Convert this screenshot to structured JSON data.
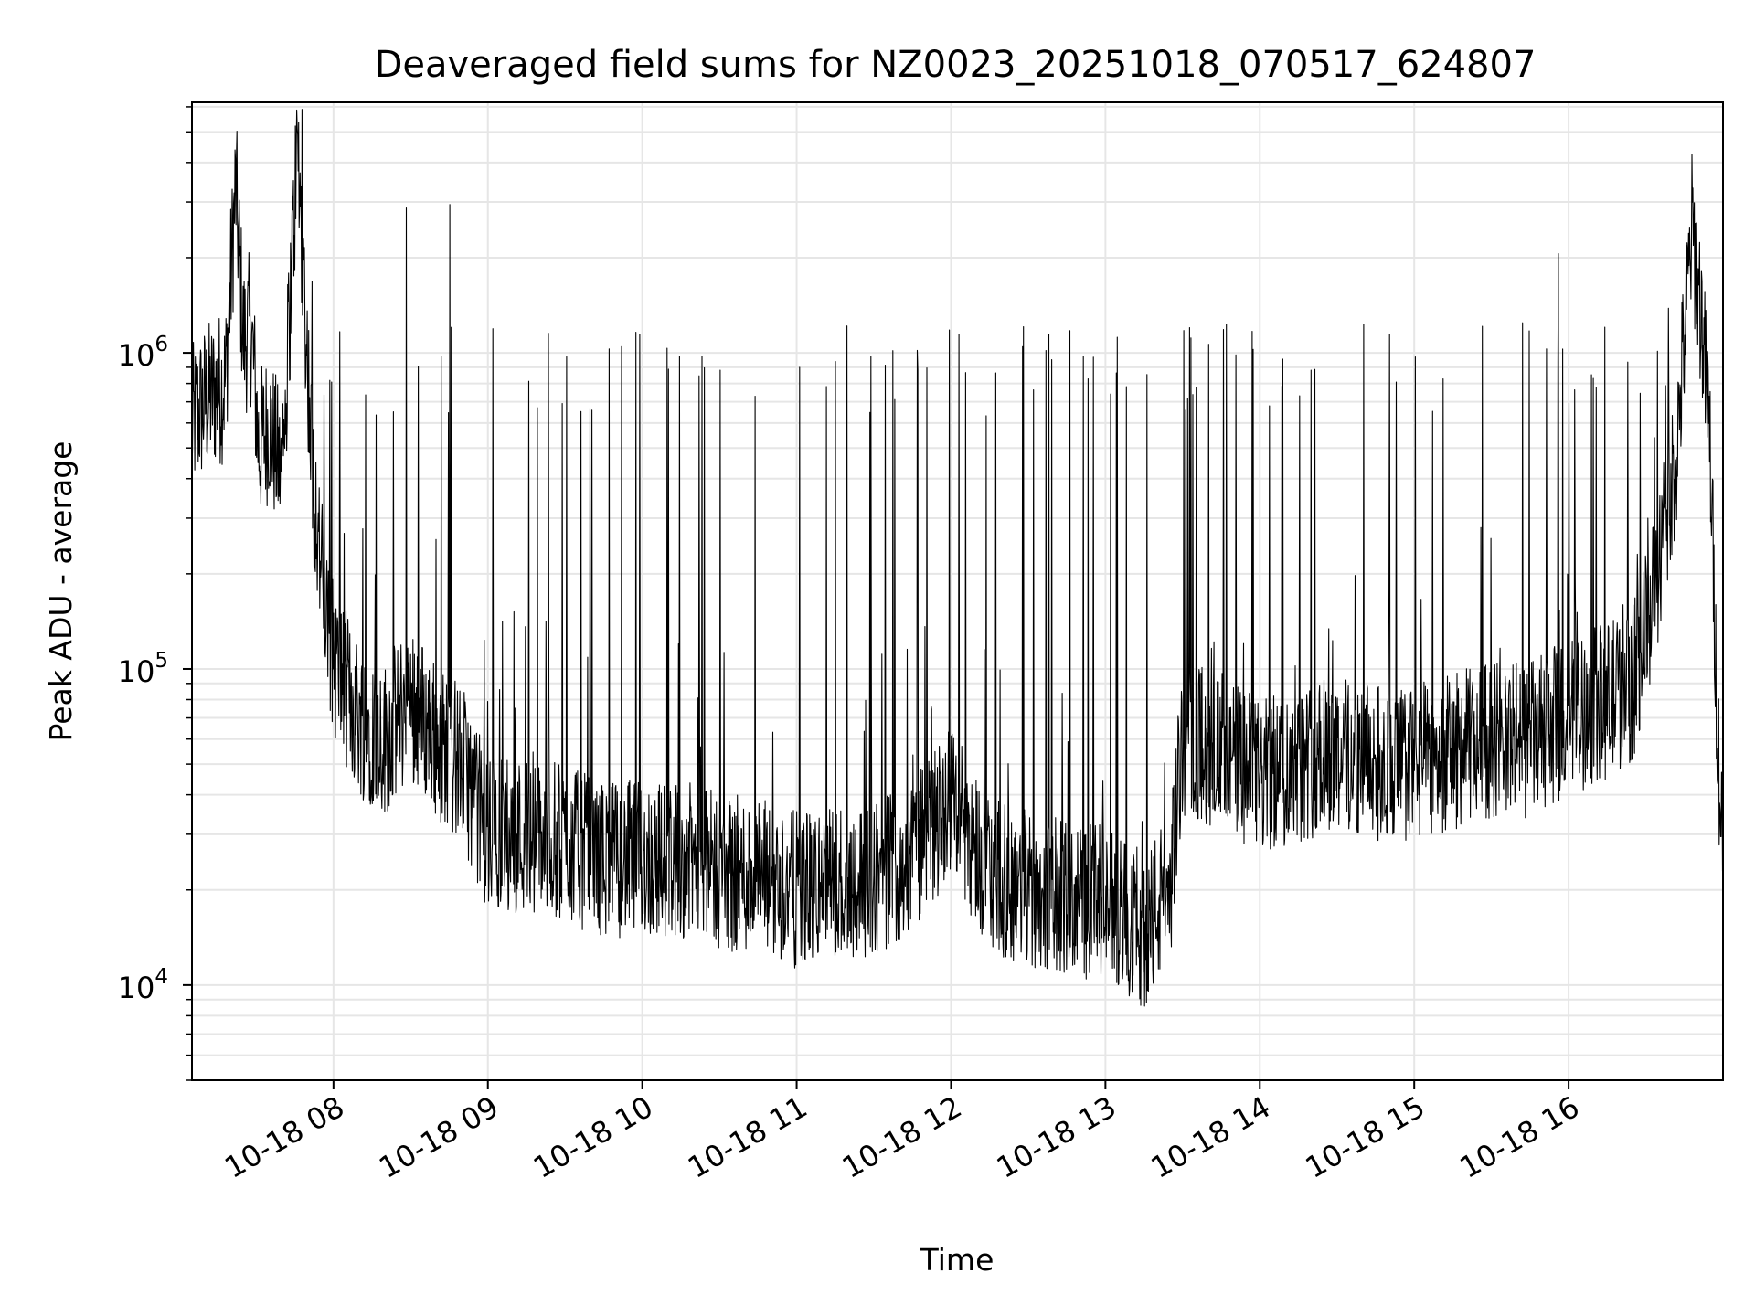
{
  "chart_data": {
    "type": "line",
    "title": "Deaveraged field sums for NZ0023_20251018_070517_624807",
    "xlabel": "Time",
    "ylabel": "Peak ADU - average",
    "yscale": "log",
    "ylim": [
      5000,
      6200000
    ],
    "grid": true,
    "x_ticks": [
      "10-18 08",
      "10-18 09",
      "10-18 10",
      "10-18 11",
      "10-18 12",
      "10-18 13",
      "10-18 14",
      "10-18 15",
      "10-18 16"
    ],
    "y_ticks": [
      {
        "base": "10",
        "exp": "4",
        "value": 10000
      },
      {
        "base": "10",
        "exp": "5",
        "value": 100000
      },
      {
        "base": "10",
        "exp": "6",
        "value": 1000000
      }
    ],
    "series": [
      {
        "color": "#000000",
        "x": [
          "07:05",
          "07:10",
          "07:14",
          "07:18",
          "07:22",
          "07:25",
          "07:28",
          "07:31",
          "07:35",
          "07:40",
          "07:46",
          "07:52",
          "07:58",
          "08:04",
          "08:10",
          "08:20",
          "08:30",
          "08:40",
          "08:50",
          "09:00",
          "09:15",
          "09:30",
          "09:45",
          "10:00",
          "10:15",
          "10:30",
          "10:45",
          "11:00",
          "11:15",
          "11:30",
          "11:45",
          "12:00",
          "12:15",
          "12:30",
          "12:45",
          "13:00",
          "13:15",
          "13:25",
          "13:30",
          "13:45",
          "14:00",
          "14:15",
          "14:30",
          "14:45",
          "15:00",
          "15:15",
          "15:30",
          "15:45",
          "16:00",
          "16:15",
          "16:25",
          "16:35",
          "16:42",
          "16:48",
          "16:52",
          "16:55",
          "16:58",
          "17:00"
        ],
        "values": [
          600000,
          700000,
          750000,
          800000,
          3400000,
          1100000,
          1200000,
          500000,
          600000,
          400000,
          4600000,
          400000,
          120000,
          90000,
          70000,
          60000,
          80000,
          60000,
          50000,
          30000,
          30000,
          28000,
          25000,
          25000,
          25000,
          23000,
          22000,
          20000,
          21000,
          22000,
          25000,
          40000,
          22000,
          20000,
          19000,
          18000,
          15000,
          20000,
          60000,
          55000,
          45000,
          50000,
          55000,
          50000,
          50000,
          55000,
          60000,
          60000,
          70000,
          80000,
          90000,
          200000,
          500000,
          2500000,
          1200000,
          500000,
          60000,
          25000
        ]
      }
    ]
  }
}
